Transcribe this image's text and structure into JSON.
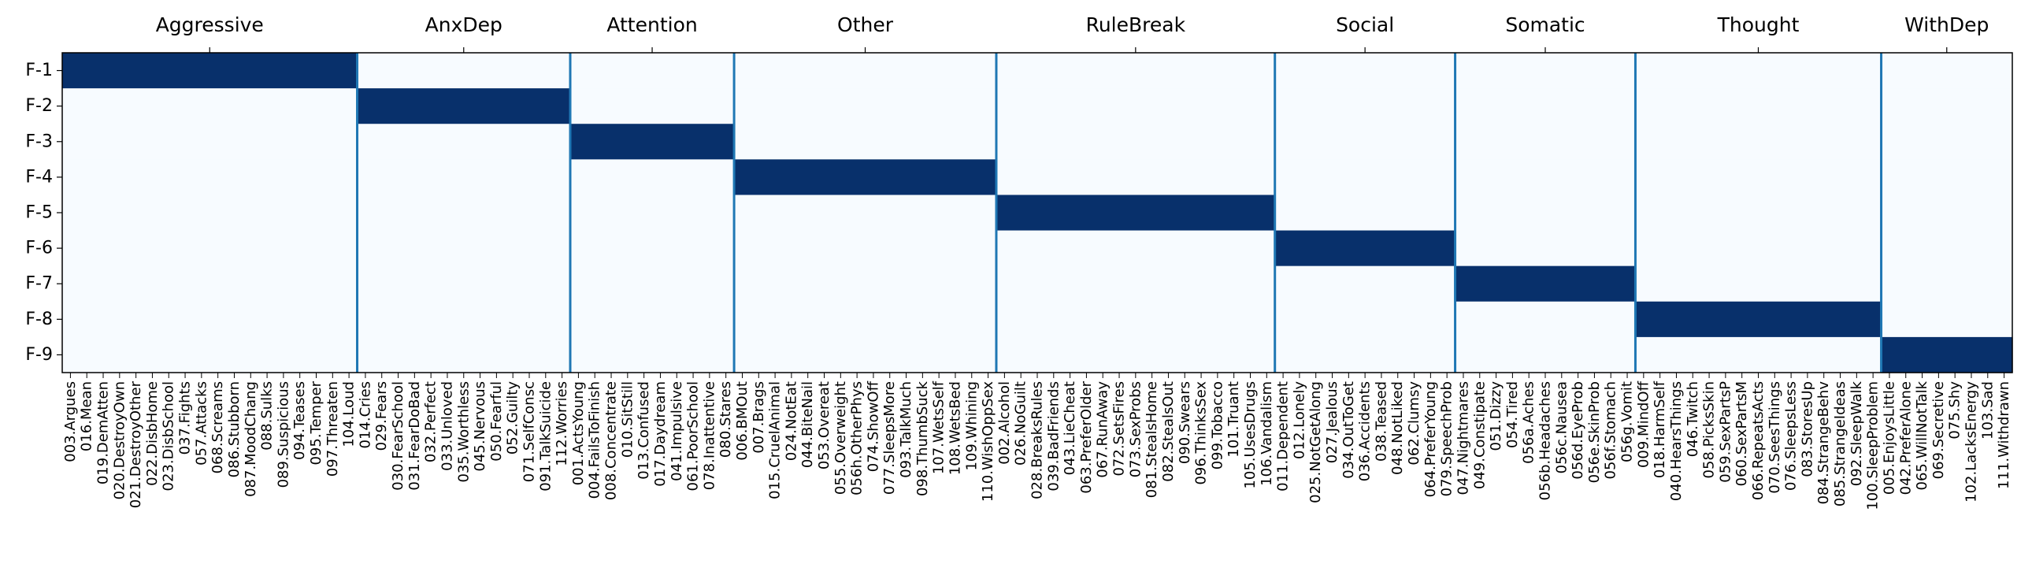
{
  "chart_data": {
    "type": "heatmap",
    "title": "",
    "xlabel": "",
    "ylabel": "",
    "rows": [
      "F-1",
      "F-2",
      "F-3",
      "F-4",
      "F-5",
      "F-6",
      "F-7",
      "F-8",
      "F-9"
    ],
    "groups": [
      {
        "name": "Aggressive",
        "items": [
          "003.Argues",
          "016.Mean",
          "019.DemAtten",
          "020.DestroyOwn",
          "021.DestroyOther",
          "022.DisbHome",
          "023.DisbSchool",
          "037.Fights",
          "057.Attacks",
          "068.Screams",
          "086.Stubborn",
          "087.MoodChang",
          "088.Sulks",
          "089.Suspicious",
          "094.Teases",
          "095.Temper",
          "097.Threaten",
          "104.Loud"
        ]
      },
      {
        "name": "AnxDep",
        "items": [
          "014.Cries",
          "029.Fears",
          "030.FearSchool",
          "031.FearDoBad",
          "032.Perfect",
          "033.Unloved",
          "035.Worthless",
          "045.Nervous",
          "050.Fearful",
          "052.Guilty",
          "071.SelfConsc",
          "091.TalkSuicide",
          "112.Worries"
        ]
      },
      {
        "name": "Attention",
        "items": [
          "001.ActsYoung",
          "004.FailsToFinish",
          "008.Concentrate",
          "010.SitStill",
          "013.Confused",
          "017.Daydream",
          "041.Impulsive",
          "061.PoorSchool",
          "078.Inattentive",
          "080.Stares"
        ]
      },
      {
        "name": "Other",
        "items": [
          "006.BMOut",
          "007.Brags",
          "015.CruelAnimal",
          "024.NotEat",
          "044.BiteNail",
          "053.Overeat",
          "055.Overweight",
          "056h.OtherPhys",
          "074.ShowOff",
          "077.SleepsMore",
          "093.TalkMuch",
          "098.ThumbSuck",
          "107.WetsSelf",
          "108.WetsBed",
          "109.Whining",
          "110.WishOppSex"
        ]
      },
      {
        "name": "RuleBreak",
        "items": [
          "002.Alcohol",
          "026.NoGuilt",
          "028.BreaksRules",
          "039.BadFriends",
          "043.LieCheat",
          "063.PreferOlder",
          "067.RunAway",
          "072.SetsFires",
          "073.SexProbs",
          "081.StealsHome",
          "082.StealsOut",
          "090.Swears",
          "096.ThinksSex",
          "099.Tobacco",
          "101.Truant",
          "105.UsesDrugs",
          "106.Vandalism"
        ]
      },
      {
        "name": "Social",
        "items": [
          "011.Dependent",
          "012.Lonely",
          "025.NotGetAlong",
          "027.Jealous",
          "034.OutToGet",
          "036.Accidents",
          "038.Teased",
          "048.NotLiked",
          "062.Clumsy",
          "064.PreferYoung",
          "079.SpeechProb"
        ]
      },
      {
        "name": "Somatic",
        "items": [
          "047.Nightmares",
          "049.Constipate",
          "051.Dizzy",
          "054.Tired",
          "056a.Aches",
          "056b.Headaches",
          "056c.Nausea",
          "056d.EyeProb",
          "056e.SkinProb",
          "056f.Stomach",
          "056g.Vomit"
        ]
      },
      {
        "name": "Thought",
        "items": [
          "009.MindOff",
          "018.HarmSelf",
          "040.HearsThings",
          "046.Twitch",
          "058.PicksSkin",
          "059.SexPartsP",
          "060.SexPartsM",
          "066.RepeatsActs",
          "070.SeesThings",
          "076.SleepsLess",
          "083.StoresUp",
          "084.StrangeBehv",
          "085.StrangeIdeas",
          "092.SleepWalk",
          "100.SleepProblem"
        ]
      },
      {
        "name": "WithDep",
        "items": [
          "005.EnjoysLittle",
          "042.PreferAlone",
          "065.WillNotTalk",
          "069.Secretive",
          "075.Shy",
          "102.LacksEnergy",
          "103.Sad",
          "111.Withdrawn"
        ]
      }
    ],
    "value_rule": "1 where row index equals group index, else 0",
    "value_range": [
      0,
      1
    ],
    "colormap": {
      "low": "#f7fbff",
      "high": "#08306b",
      "separator": "#1f77b4"
    },
    "grid": false,
    "legend": "none"
  }
}
